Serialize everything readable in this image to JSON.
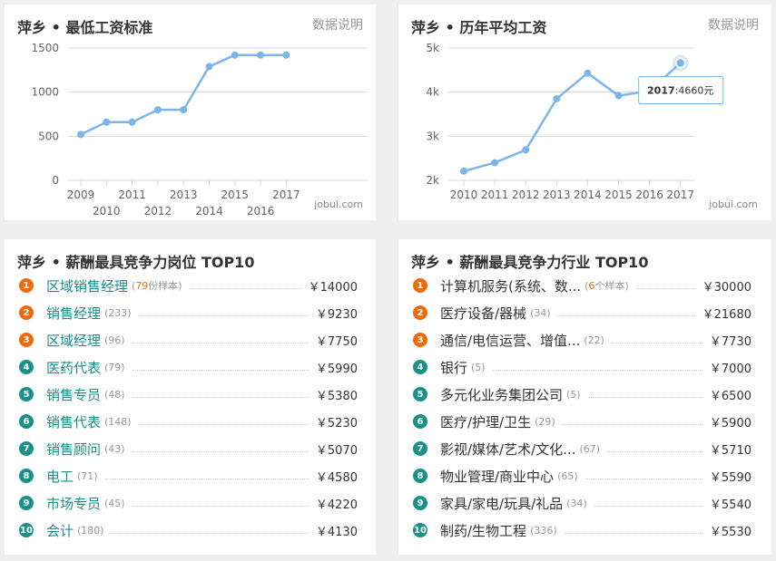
{
  "panel_min_wage": {
    "title": "萍乡 • 最低工资标准",
    "link": "数据说明",
    "watermark": "jobui.com"
  },
  "panel_avg_wage": {
    "title": "萍乡 • 历年平均工资",
    "link": "数据说明",
    "watermark": "jobui.com",
    "tooltip": {
      "year": "2017",
      "value": ":4660元"
    }
  },
  "chart_data": [
    {
      "type": "line",
      "title": "萍乡 • 最低工资标准",
      "x": [
        "2009",
        "2010",
        "2011",
        "2012",
        "2013",
        "2014",
        "2015",
        "2016",
        "2017"
      ],
      "values": [
        520,
        660,
        660,
        800,
        800,
        1290,
        1420,
        1420,
        1420
      ],
      "ylim": [
        0,
        1500
      ],
      "yticks": [
        "0",
        "500",
        "1000",
        "1500"
      ],
      "grid": true,
      "color": "#7cb5ec"
    },
    {
      "type": "line",
      "title": "萍乡 • 历年平均工资",
      "x": [
        "2010",
        "2011",
        "2012",
        "2013",
        "2014",
        "2015",
        "2016",
        "2017"
      ],
      "values": [
        2210,
        2400,
        2690,
        3850,
        4430,
        3920,
        4030,
        4660
      ],
      "ylim": [
        2000,
        5000
      ],
      "yticks": [
        "2k",
        "3k",
        "4k",
        "5k"
      ],
      "grid": true,
      "color": "#7cb5ec"
    }
  ],
  "jobs": {
    "title": "萍乡 • 薪酬最具竞争力岗位 TOP10",
    "items": [
      {
        "rank": "1",
        "name": "区域销售经理",
        "count_num": "79",
        "count_text": "份样本)",
        "count": "",
        "salary": "￥14000"
      },
      {
        "rank": "2",
        "name": "销售经理",
        "count": "(233)",
        "salary": "￥9230"
      },
      {
        "rank": "3",
        "name": "区域经理",
        "count": "(96)",
        "salary": "￥7750"
      },
      {
        "rank": "4",
        "name": "医药代表",
        "count": "(79)",
        "salary": "￥5990"
      },
      {
        "rank": "5",
        "name": "销售专员",
        "count": "(48)",
        "salary": "￥5380"
      },
      {
        "rank": "6",
        "name": "销售代表",
        "count": "(148)",
        "salary": "￥5230"
      },
      {
        "rank": "7",
        "name": "销售顾问",
        "count": "(43)",
        "salary": "￥5070"
      },
      {
        "rank": "8",
        "name": "电工",
        "count": "(71)",
        "salary": "￥4580"
      },
      {
        "rank": "9",
        "name": "市场专员",
        "count": "(45)",
        "salary": "￥4220"
      },
      {
        "rank": "10",
        "name": "会计",
        "count": "(180)",
        "salary": "￥4130"
      }
    ]
  },
  "industries": {
    "title": "萍乡 • 薪酬最具竞争力行业 TOP10",
    "items": [
      {
        "rank": "1",
        "name": "计算机服务(系统、数...",
        "count_num": "6",
        "count_text": "个样本)",
        "count": "",
        "salary": "￥30000"
      },
      {
        "rank": "2",
        "name": "医疗设备/器械",
        "count": "(34)",
        "salary": "￥21680"
      },
      {
        "rank": "3",
        "name": "通信/电信运营、增值...",
        "count": "(22)",
        "salary": "￥7730"
      },
      {
        "rank": "4",
        "name": "银行",
        "count": "(5)",
        "salary": "￥7000"
      },
      {
        "rank": "5",
        "name": "多元化业务集团公司",
        "count": "(5)",
        "salary": "￥6500"
      },
      {
        "rank": "6",
        "name": "医疗/护理/卫生",
        "count": "(29)",
        "salary": "￥5900"
      },
      {
        "rank": "7",
        "name": "影视/媒体/艺术/文化...",
        "count": "(67)",
        "salary": "￥5710"
      },
      {
        "rank": "8",
        "name": "物业管理/商业中心",
        "count": "(65)",
        "salary": "￥5590"
      },
      {
        "rank": "9",
        "name": "家具/家电/玩具/礼品",
        "count": "(34)",
        "salary": "￥5540"
      },
      {
        "rank": "10",
        "name": "制药/生物工程",
        "count": "(336)",
        "salary": "￥5530"
      }
    ]
  }
}
